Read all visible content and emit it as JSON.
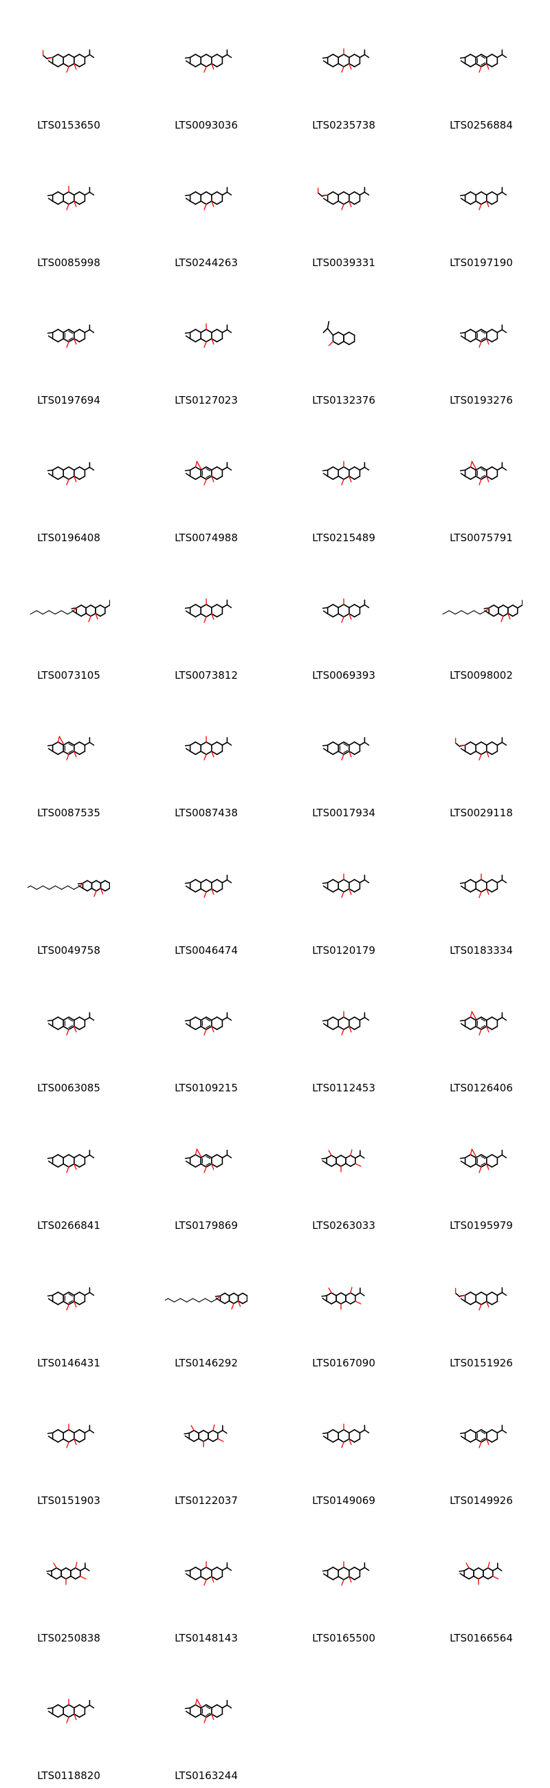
{
  "colors": {
    "bond": "#000000",
    "heteroatom": "#ff0d0d",
    "background": "#ffffff"
  },
  "molecules": [
    {
      "id": "LTS0153650",
      "shape": "tricyclic-diketone-ester"
    },
    {
      "id": "LTS0093036",
      "shape": "tricyclic-diketone"
    },
    {
      "id": "LTS0235738",
      "shape": "tricyclic-diketone-hydroxy"
    },
    {
      "id": "LTS0256884",
      "shape": "tricyclic-quinone"
    },
    {
      "id": "LTS0085998",
      "shape": "tricyclic-diketone-hydroxy"
    },
    {
      "id": "LTS0244263",
      "shape": "tricyclic-diketone"
    },
    {
      "id": "LTS0039331",
      "shape": "tricyclic-diketone-ester"
    },
    {
      "id": "LTS0197190",
      "shape": "tricyclic-alkane"
    },
    {
      "id": "LTS0197694",
      "shape": "tricyclic-quinone"
    },
    {
      "id": "LTS0127023",
      "shape": "tricyclic-lactone"
    },
    {
      "id": "LTS0132376",
      "shape": "bicyclic-branched"
    },
    {
      "id": "LTS0193276",
      "shape": "tricyclic-quinone"
    },
    {
      "id": "LTS0196408",
      "shape": "tricyclic-diketone"
    },
    {
      "id": "LTS0074988",
      "shape": "tricyclic-furan"
    },
    {
      "id": "LTS0215489",
      "shape": "tricyclic-diketone-hydroxy"
    },
    {
      "id": "LTS0075791",
      "shape": "tricyclic-furan"
    },
    {
      "id": "LTS0073105",
      "shape": "tricyclic-long-chain-ester"
    },
    {
      "id": "LTS0073812",
      "shape": "tricyclic-diketone-hydroxy"
    },
    {
      "id": "LTS0069393",
      "shape": "tricyclic-diketone-hydroxy"
    },
    {
      "id": "LTS0098002",
      "shape": "tricyclic-long-chain-ester"
    },
    {
      "id": "LTS0087535",
      "shape": "tricyclic-furan"
    },
    {
      "id": "LTS0087438",
      "shape": "tricyclic-lactone"
    },
    {
      "id": "LTS0017934",
      "shape": "tricyclic-quinone"
    },
    {
      "id": "LTS0029118",
      "shape": "tricyclic-acetoxy"
    },
    {
      "id": "LTS0049758",
      "shape": "tricyclic-very-long-chain-ester"
    },
    {
      "id": "LTS0046474",
      "shape": "tricyclic-diketone"
    },
    {
      "id": "LTS0120179",
      "shape": "tricyclic-diketone-hydroxy"
    },
    {
      "id": "LTS0183334",
      "shape": "tricyclic-diketone-hydroxy"
    },
    {
      "id": "LTS0063085",
      "shape": "tricyclic-quinone"
    },
    {
      "id": "LTS0109215",
      "shape": "tricyclic-quinone"
    },
    {
      "id": "LTS0112453",
      "shape": "tricyclic-diketone-hydroxy"
    },
    {
      "id": "LTS0126406",
      "shape": "tricyclic-furan"
    },
    {
      "id": "LTS0266841",
      "shape": "tricyclic-diketone"
    },
    {
      "id": "LTS0179869",
      "shape": "tricyclic-furan"
    },
    {
      "id": "LTS0263033",
      "shape": "dimer"
    },
    {
      "id": "LTS0195979",
      "shape": "tricyclic-furan"
    },
    {
      "id": "LTS0146431",
      "shape": "tricyclic-quinone"
    },
    {
      "id": "LTS0146292",
      "shape": "tricyclic-very-long-chain-ester"
    },
    {
      "id": "LTS0167090",
      "shape": "dimer"
    },
    {
      "id": "LTS0151926",
      "shape": "tricyclic-acetoxy"
    },
    {
      "id": "LTS0151903",
      "shape": "tricyclic-diketone-hydroxy"
    },
    {
      "id": "LTS0122037",
      "shape": "dimer"
    },
    {
      "id": "LTS0149069",
      "shape": "tricyclic-diketone-hydroxy"
    },
    {
      "id": "LTS0149926",
      "shape": "tricyclic-quinone"
    },
    {
      "id": "LTS0250838",
      "shape": "dimer"
    },
    {
      "id": "LTS0148143",
      "shape": "tricyclic-diketone-hydroxy"
    },
    {
      "id": "LTS0165500",
      "shape": "tricyclic-lactone"
    },
    {
      "id": "LTS0166564",
      "shape": "dimer"
    },
    {
      "id": "LTS0118820",
      "shape": "tricyclic-diketone-hydroxy"
    },
    {
      "id": "LTS0163244",
      "shape": "tricyclic-furan"
    }
  ]
}
